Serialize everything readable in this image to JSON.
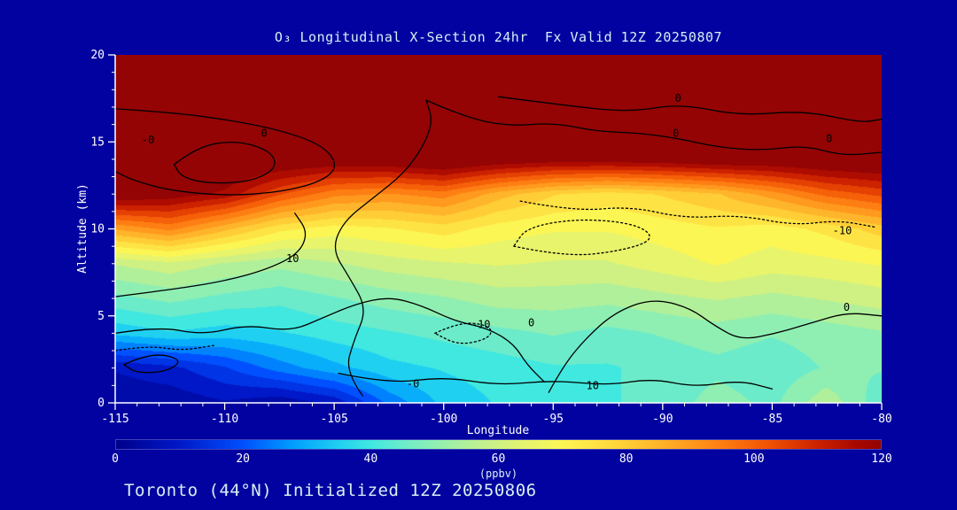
{
  "figure": {
    "background": "#0202a0"
  },
  "chart_data": {
    "type": "heatmap",
    "title": "O₃ Longitudinal X-Section 24hr  Fx Valid 12Z 20250807",
    "annotation": "Toronto (44°N) Initialized 12Z 20250806",
    "xlabel": "Longitude",
    "ylabel": "Altitude (km)",
    "x_range": [
      -115,
      -80
    ],
    "y_range": [
      0,
      20
    ],
    "xticks": [
      -115,
      -110,
      -105,
      -100,
      -95,
      -90,
      -85,
      -80
    ],
    "yticks": [
      0,
      5,
      10,
      15,
      20
    ],
    "lons": [
      -115,
      -112.5,
      -110,
      -107.5,
      -105,
      -102.5,
      -100,
      -97.5,
      -95,
      -92.5,
      -90,
      -87.5,
      -85,
      -82.5,
      -80
    ],
    "alts": [
      0,
      2,
      4,
      6,
      8,
      10,
      12,
      14,
      16,
      18,
      20
    ],
    "values_ppbv": [
      [
        4,
        4,
        7,
        4,
        9,
        24,
        34,
        38,
        40,
        42,
        44,
        50,
        46,
        56,
        44
      ],
      [
        8,
        11,
        17,
        25,
        31,
        36,
        38,
        40,
        42,
        42,
        44,
        46,
        44,
        48,
        48
      ],
      [
        34,
        37,
        35,
        37,
        40,
        42,
        44,
        46,
        48,
        46,
        48,
        50,
        48,
        50,
        52
      ],
      [
        46,
        49,
        46,
        44,
        47,
        50,
        52,
        55,
        55,
        54,
        56,
        58,
        56,
        58,
        60
      ],
      [
        58,
        61,
        57,
        54,
        57,
        60,
        62,
        63,
        62,
        62,
        65,
        68,
        65,
        66,
        68
      ],
      [
        88,
        94,
        84,
        74,
        70,
        72,
        75,
        70,
        68,
        68,
        70,
        72,
        70,
        74,
        80
      ],
      [
        124,
        121,
        116,
        103,
        94,
        92,
        95,
        85,
        78,
        75,
        78,
        82,
        90,
        99,
        104
      ],
      [
        129,
        129,
        127,
        125,
        123,
        124,
        127,
        123,
        121,
        121,
        122,
        124,
        124,
        126,
        127
      ],
      [
        130,
        130,
        130,
        130,
        130,
        130,
        130,
        130,
        130,
        130,
        130,
        130,
        130,
        130,
        130
      ],
      [
        130,
        130,
        130,
        130,
        130,
        130,
        130,
        130,
        130,
        130,
        130,
        130,
        130,
        130,
        130
      ],
      [
        130,
        130,
        130,
        130,
        130,
        130,
        130,
        130,
        130,
        130,
        130,
        130,
        130,
        130,
        130
      ]
    ],
    "band_step": 5,
    "colormap": [
      [
        0,
        "#00008b"
      ],
      [
        10,
        "#0018c8"
      ],
      [
        20,
        "#0050ff"
      ],
      [
        28,
        "#00a0ff"
      ],
      [
        35,
        "#20d0f0"
      ],
      [
        40,
        "#40e8e0"
      ],
      [
        46,
        "#74ecc6"
      ],
      [
        52,
        "#9cf0a8"
      ],
      [
        58,
        "#c4f08c"
      ],
      [
        64,
        "#e4f470"
      ],
      [
        70,
        "#fcf654"
      ],
      [
        78,
        "#ffd83c"
      ],
      [
        86,
        "#ffb028"
      ],
      [
        94,
        "#ff8414"
      ],
      [
        102,
        "#f25404"
      ],
      [
        110,
        "#cc2200"
      ],
      [
        116,
        "#a80800"
      ],
      [
        120,
        "#940404"
      ]
    ],
    "colorbar": {
      "ticks": [
        0,
        20,
        40,
        60,
        80,
        100,
        120
      ],
      "label": "(ppbv)",
      "min": 0,
      "max": 120
    },
    "contours": [
      {
        "level": "0",
        "style": "solid",
        "points": [
          [
            -115,
            16.9
          ],
          [
            -112.5,
            16.7
          ],
          [
            -110,
            16.3
          ],
          [
            -107.5,
            15.7
          ],
          [
            -105.5,
            14.8
          ],
          [
            -104.8,
            13.6
          ],
          [
            -105.6,
            12.7
          ],
          [
            -107.5,
            12.1
          ],
          [
            -110,
            11.9
          ],
          [
            -112.5,
            12.2
          ],
          [
            -114.2,
            12.8
          ],
          [
            -115,
            13.3
          ]
        ]
      },
      {
        "level": "0",
        "style": "solid",
        "points": [
          [
            -112.3,
            13.7
          ],
          [
            -111.3,
            14.7
          ],
          [
            -109.5,
            15.1
          ],
          [
            -107.9,
            14.5
          ],
          [
            -107.6,
            13.5
          ],
          [
            -108.8,
            12.7
          ],
          [
            -110.8,
            12.6
          ],
          [
            -112.0,
            13.0
          ],
          [
            -112.3,
            13.7
          ]
        ]
      },
      {
        "level": "0",
        "style": "solid",
        "points": [
          [
            -103.7,
            0.4
          ],
          [
            -104.5,
            1.8
          ],
          [
            -104.1,
            3.6
          ],
          [
            -103.5,
            5.4
          ],
          [
            -104.3,
            7.2
          ],
          [
            -105.1,
            8.8
          ],
          [
            -104.6,
            10.4
          ],
          [
            -103.2,
            11.8
          ],
          [
            -101.8,
            13.2
          ],
          [
            -100.9,
            14.8
          ],
          [
            -100.5,
            16.2
          ],
          [
            -100.8,
            17.4
          ]
        ]
      },
      {
        "level": "0",
        "style": "solid",
        "points": [
          [
            -100.8,
            17.4
          ],
          [
            -99,
            16.4
          ],
          [
            -97,
            15.9
          ],
          [
            -95,
            16.1
          ],
          [
            -93,
            15.6
          ],
          [
            -91,
            15.5
          ],
          [
            -89.3,
            15.2
          ],
          [
            -87.5,
            14.7
          ],
          [
            -85.5,
            14.5
          ],
          [
            -83.5,
            14.8
          ],
          [
            -81.8,
            14.2
          ],
          [
            -80,
            14.4
          ]
        ]
      },
      {
        "level": "0",
        "style": "solid",
        "points": [
          [
            -97.5,
            17.6
          ],
          [
            -94.5,
            17.1
          ],
          [
            -91.5,
            16.7
          ],
          [
            -89.2,
            17.2
          ],
          [
            -86.5,
            16.5
          ],
          [
            -83.5,
            16.8
          ],
          [
            -81,
            16.1
          ],
          [
            -80,
            16.3
          ]
        ]
      },
      {
        "level": "-10",
        "style": "dotted",
        "points": [
          [
            -96.5,
            11.6
          ],
          [
            -94,
            11.0
          ],
          [
            -91.5,
            11.3
          ],
          [
            -89,
            10.6
          ],
          [
            -86.5,
            10.8
          ],
          [
            -84,
            10.2
          ],
          [
            -82,
            10.5
          ],
          [
            -80.3,
            10.1
          ]
        ]
      },
      {
        "level": "-10",
        "style": "dotted",
        "points": [
          [
            -96.8,
            9.0
          ],
          [
            -94.5,
            8.4
          ],
          [
            -92,
            8.7
          ],
          [
            -90.3,
            9.4
          ],
          [
            -91.2,
            10.3
          ],
          [
            -93.8,
            10.6
          ],
          [
            -96.2,
            10.1
          ],
          [
            -96.8,
            9.0
          ]
        ]
      },
      {
        "level": "10",
        "style": "solid",
        "points": [
          [
            -115,
            6.1
          ],
          [
            -112.5,
            6.5
          ],
          [
            -110,
            7.0
          ],
          [
            -108,
            7.7
          ],
          [
            -106.6,
            8.6
          ],
          [
            -106.2,
            9.8
          ],
          [
            -106.8,
            10.9
          ]
        ]
      },
      {
        "level": "0",
        "style": "solid",
        "points": [
          [
            -115,
            4.0
          ],
          [
            -113,
            4.4
          ],
          [
            -111,
            3.9
          ],
          [
            -109,
            4.5
          ],
          [
            -107,
            4.1
          ],
          [
            -105.5,
            4.9
          ],
          [
            -104,
            5.7
          ],
          [
            -102.5,
            6.1
          ],
          [
            -101,
            5.6
          ],
          [
            -99.5,
            4.7
          ],
          [
            -98,
            4.3
          ],
          [
            -96.8,
            3.4
          ],
          [
            -96.2,
            2.2
          ],
          [
            -95.4,
            1.2
          ]
        ]
      },
      {
        "level": "0",
        "style": "solid",
        "points": [
          [
            -95.2,
            0.6
          ],
          [
            -94.6,
            2.0
          ],
          [
            -93.6,
            3.6
          ],
          [
            -92.2,
            5.2
          ],
          [
            -90.5,
            6.0
          ],
          [
            -88.8,
            5.5
          ],
          [
            -87.6,
            4.4
          ],
          [
            -86.4,
            3.6
          ],
          [
            -84.8,
            4.0
          ],
          [
            -83.2,
            4.6
          ],
          [
            -81.6,
            5.2
          ],
          [
            -80,
            5.0
          ]
        ]
      },
      {
        "level": "10",
        "style": "solid",
        "points": [
          [
            -104.8,
            1.7
          ],
          [
            -102.5,
            1.1
          ],
          [
            -100,
            1.5
          ],
          [
            -97.5,
            1.0
          ],
          [
            -95,
            1.3
          ],
          [
            -92.5,
            1.0
          ],
          [
            -90.5,
            1.4
          ],
          [
            -88.5,
            0.9
          ],
          [
            -86.5,
            1.3
          ],
          [
            -85,
            0.8
          ]
        ]
      },
      {
        "level": "-10",
        "style": "dotted",
        "points": [
          [
            -100.4,
            4.0
          ],
          [
            -99.2,
            4.7
          ],
          [
            -97.8,
            4.4
          ],
          [
            -97.9,
            3.7
          ],
          [
            -99.3,
            3.3
          ],
          [
            -100.4,
            4.0
          ]
        ]
      },
      {
        "level": "0",
        "style": "solid",
        "points": [
          [
            -114.6,
            2.2
          ],
          [
            -113.4,
            2.9
          ],
          [
            -111.9,
            2.5
          ],
          [
            -112.6,
            1.8
          ],
          [
            -114.0,
            1.7
          ],
          [
            -114.6,
            2.2
          ]
        ]
      },
      {
        "level": "-0",
        "style": "dotted",
        "points": [
          [
            -115,
            3.0
          ],
          [
            -113.5,
            3.3
          ],
          [
            -112,
            3.0
          ],
          [
            -110.5,
            3.3
          ]
        ]
      }
    ],
    "contour_labels": [
      {
        "text": "-0",
        "lon": -113.5,
        "alt": 14.9
      },
      {
        "text": "0",
        "lon": -108.2,
        "alt": 15.3
      },
      {
        "text": "10",
        "lon": -106.9,
        "alt": 8.1
      },
      {
        "text": "0",
        "lon": -89.4,
        "alt": 15.3
      },
      {
        "text": "0",
        "lon": -89.3,
        "alt": 17.3
      },
      {
        "text": "0",
        "lon": -82.4,
        "alt": 15.0
      },
      {
        "text": "-10",
        "lon": -81.8,
        "alt": 9.7
      },
      {
        "text": "-10",
        "lon": -98.3,
        "alt": 4.3
      },
      {
        "text": "0",
        "lon": -96.0,
        "alt": 4.4
      },
      {
        "text": "0",
        "lon": -81.6,
        "alt": 5.3
      },
      {
        "text": "-0",
        "lon": -101.4,
        "alt": 0.9
      },
      {
        "text": "10",
        "lon": -93.2,
        "alt": 0.8
      }
    ]
  }
}
